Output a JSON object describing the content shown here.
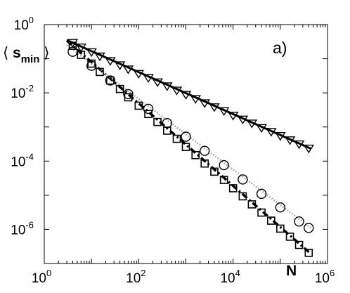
{
  "chart_data": {
    "type": "scatter",
    "panel_label": "a)",
    "xlabel": "N",
    "ylabel": {
      "prefix": "⟨ s",
      "sub": "min",
      "suffix": " ⟩"
    },
    "x_scale": "log",
    "y_scale": "log",
    "xlim": [
      1,
      1000000
    ],
    "ylim": [
      1e-07,
      1
    ],
    "x_ticks": [
      {
        "value": 1,
        "base": "10",
        "exp": "0"
      },
      {
        "value": 100,
        "base": "10",
        "exp": "2"
      },
      {
        "value": 10000,
        "base": "10",
        "exp": "4"
      },
      {
        "value": 1000000,
        "base": "10",
        "exp": "6"
      }
    ],
    "y_ticks": [
      {
        "value": 1,
        "base": "10",
        "exp": "0"
      },
      {
        "value": 0.01,
        "base": "10",
        "exp": "-2"
      },
      {
        "value": 0.0001,
        "base": "10",
        "exp": "-4"
      },
      {
        "value": 1e-06,
        "base": "10",
        "exp": "-6"
      }
    ],
    "grid": false,
    "series": [
      {
        "marker": "triangle-down",
        "color": "#000000",
        "x": [
          4,
          6,
          10,
          15,
          25,
          40,
          60,
          100,
          160,
          250,
          400,
          640,
          1000,
          1600,
          2500,
          4000,
          6400,
          10000,
          16000,
          25000,
          40000,
          64000,
          100000,
          160000,
          250000,
          400000
        ],
        "y": [
          0.3,
          0.22,
          0.16,
          0.12,
          0.088,
          0.066,
          0.05,
          0.037,
          0.028,
          0.021,
          0.016,
          0.012,
          0.009,
          0.0068,
          0.0051,
          0.0039,
          0.003,
          0.0022,
          0.0017,
          0.0013,
          0.00096,
          0.00074,
          0.00056,
          0.00042,
          0.00032,
          0.00024
        ]
      },
      {
        "marker": "circle",
        "color": "#000000",
        "x": [
          4,
          10,
          25,
          60,
          160,
          400,
          1000,
          2500,
          6400,
          16000,
          40000,
          100000,
          250000,
          400000
        ],
        "y": [
          0.16,
          0.062,
          0.023,
          0.0092,
          0.0034,
          0.0013,
          0.00052,
          0.0002,
          7.6e-05,
          2.9e-05,
          1.1e-05,
          4.4e-06,
          1.7e-06,
          1.1e-06
        ]
      },
      {
        "marker": "square",
        "color": "#000000",
        "x": [
          4,
          6,
          10,
          15,
          25,
          40,
          60,
          100,
          160,
          250,
          400,
          640,
          1000,
          1600,
          2500,
          4000,
          6400,
          10000,
          16000,
          25000,
          40000,
          64000,
          100000,
          160000,
          250000,
          400000
        ],
        "y": [
          0.24,
          0.13,
          0.072,
          0.041,
          0.023,
          0.013,
          0.0074,
          0.0042,
          0.0024,
          0.0014,
          0.00078,
          0.00045,
          0.00026,
          0.00015,
          8.5e-05,
          4.9e-05,
          2.8e-05,
          1.6e-05,
          9.3e-06,
          5.4e-06,
          3.1e-06,
          1.8e-06,
          1.05e-06,
          6.1e-07,
          3.5e-07,
          2.05e-07
        ]
      }
    ],
    "fit_lines": [
      {
        "style": "solid",
        "color": "#000000",
        "x": [
          3,
          450000
        ],
        "y": [
          0.35,
          0.00023
        ]
      },
      {
        "style": "dash-dot",
        "color": "#000000",
        "x": [
          3,
          450000
        ],
        "y": [
          0.34,
          1.9e-07
        ]
      },
      {
        "style": "dotted-gray",
        "color": "#999999",
        "x": [
          3,
          450000
        ],
        "y": [
          0.25,
          1.1e-06
        ]
      }
    ]
  }
}
